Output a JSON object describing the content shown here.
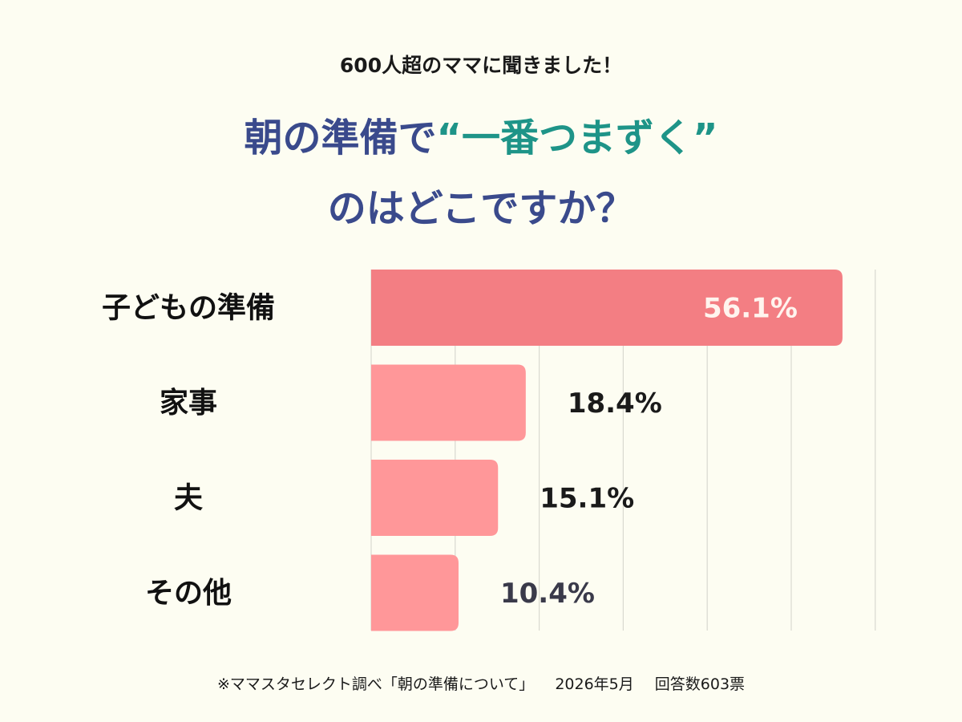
{
  "header": {
    "subtitle": "600人超のママに聞きました！",
    "title_line1_prefix": "朝の準備で",
    "title_line1_accent": "“一番つまずく”",
    "title_line2": "のはどこですか？"
  },
  "chart_data": {
    "type": "bar",
    "orientation": "horizontal",
    "categories": [
      "子どもの準備",
      "家事",
      "夫",
      "その他"
    ],
    "values": [
      56.1,
      18.4,
      15.1,
      10.4
    ],
    "value_labels": [
      "56.1%",
      "18.4%",
      "15.1%",
      "10.4%"
    ],
    "xlim": [
      0,
      60
    ],
    "grid": true,
    "colors": {
      "highlight": "#F37E83",
      "normal": "#FF9799",
      "highlight_label": "#FFF4EE",
      "label": "#1a1a1a",
      "last_label": "#3A3A4A",
      "grid": "#D9D9D0"
    }
  },
  "footer": {
    "source": "※ママスタセレクト調べ「朝の準備について」",
    "date": "2026年5月",
    "responses": "回答数603票"
  }
}
